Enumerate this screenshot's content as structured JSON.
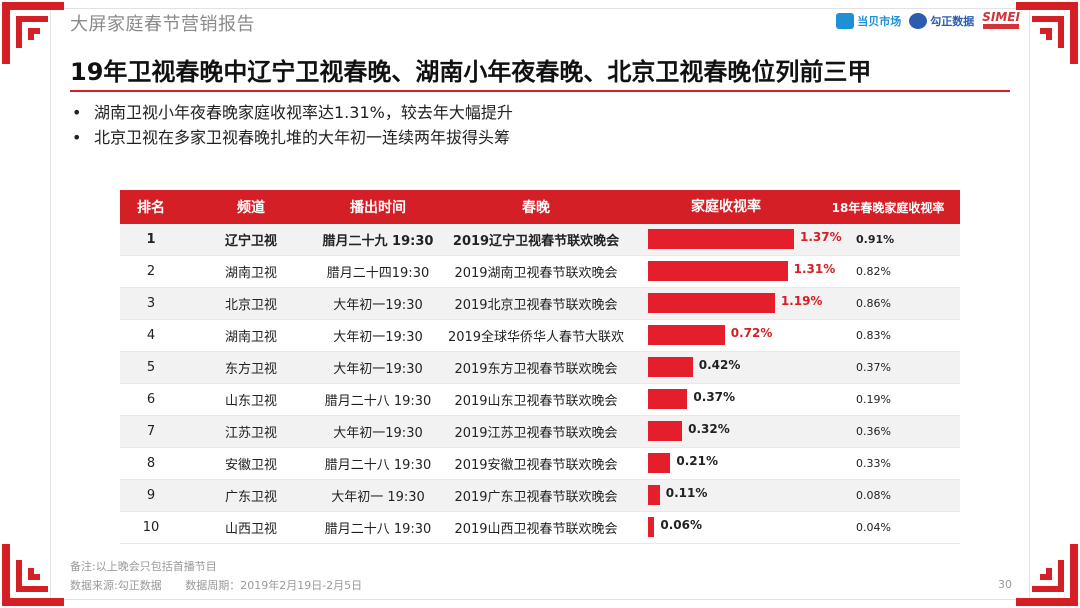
{
  "header": {
    "report_title": "大屏家庭春节营销报告",
    "logos": [
      "当贝市场",
      "勾正数据",
      "SIMEI"
    ]
  },
  "title": "19年卫视春晚中辽宁卫视春晚、湖南小年夜春晚、北京卫视春晚位列前三甲",
  "bullets": [
    "湖南卫视小年夜春晚家庭收视率达1.31%，较去年大幅提升",
    "北京卫视在多家卫视春晚扎堆的大年初一连续两年拔得头筹"
  ],
  "chart_data": {
    "type": "table",
    "columns": [
      "排名",
      "频道",
      "播出时间",
      "春晚",
      "家庭收视率",
      "18年春晚家庭收视率"
    ],
    "bar_max": 1.37,
    "rows": [
      {
        "rank": "1",
        "channel": "辽宁卫视",
        "time": "腊月二十九 19:30",
        "show": "2019辽宁卫视春节联欢晚会",
        "rating": 1.37,
        "rating_label": "1.37%",
        "prev": "0.91%"
      },
      {
        "rank": "2",
        "channel": "湖南卫视",
        "time": "腊月二十四19:30",
        "show": "2019湖南卫视春节联欢晚会",
        "rating": 1.31,
        "rating_label": "1.31%",
        "prev": "0.82%"
      },
      {
        "rank": "3",
        "channel": "北京卫视",
        "time": "大年初一19:30",
        "show": "2019北京卫视春节联欢晚会",
        "rating": 1.19,
        "rating_label": "1.19%",
        "prev": "0.86%"
      },
      {
        "rank": "4",
        "channel": "湖南卫视",
        "time": "大年初一19:30",
        "show": "2019全球华侨华人春节大联欢",
        "rating": 0.72,
        "rating_label": "0.72%",
        "prev": "0.83%"
      },
      {
        "rank": "5",
        "channel": "东方卫视",
        "time": "大年初一19:30",
        "show": "2019东方卫视春节联欢晚会",
        "rating": 0.42,
        "rating_label": "0.42%",
        "prev": "0.37%"
      },
      {
        "rank": "6",
        "channel": "山东卫视",
        "time": "腊月二十八 19:30",
        "show": "2019山东卫视春节联欢晚会",
        "rating": 0.37,
        "rating_label": "0.37%",
        "prev": "0.19%"
      },
      {
        "rank": "7",
        "channel": "江苏卫视",
        "time": "大年初一19:30",
        "show": "2019江苏卫视春节联欢晚会",
        "rating": 0.32,
        "rating_label": "0.32%",
        "prev": "0.36%"
      },
      {
        "rank": "8",
        "channel": "安徽卫视",
        "time": "腊月二十八 19:30",
        "show": "2019安徽卫视春节联欢晚会",
        "rating": 0.21,
        "rating_label": "0.21%",
        "prev": "0.33%"
      },
      {
        "rank": "9",
        "channel": "广东卫视",
        "time": "大年初一 19:30",
        "show": "2019广东卫视春节联欢晚会",
        "rating": 0.11,
        "rating_label": "0.11%",
        "prev": "0.08%"
      },
      {
        "rank": "10",
        "channel": "山西卫视",
        "time": "腊月二十八 19:30",
        "show": "2019山西卫视春节联欢晚会",
        "rating": 0.06,
        "rating_label": "0.06%",
        "prev": "0.04%"
      }
    ]
  },
  "footer": {
    "note": "备注:以上晚会只包括首播节目",
    "source": "数据来源:勾正数据",
    "period": "数据周期：2019年2月19日-2月5日",
    "page": "30"
  },
  "colors": {
    "accent": "#d41f26",
    "bar": "#e51e2b"
  }
}
